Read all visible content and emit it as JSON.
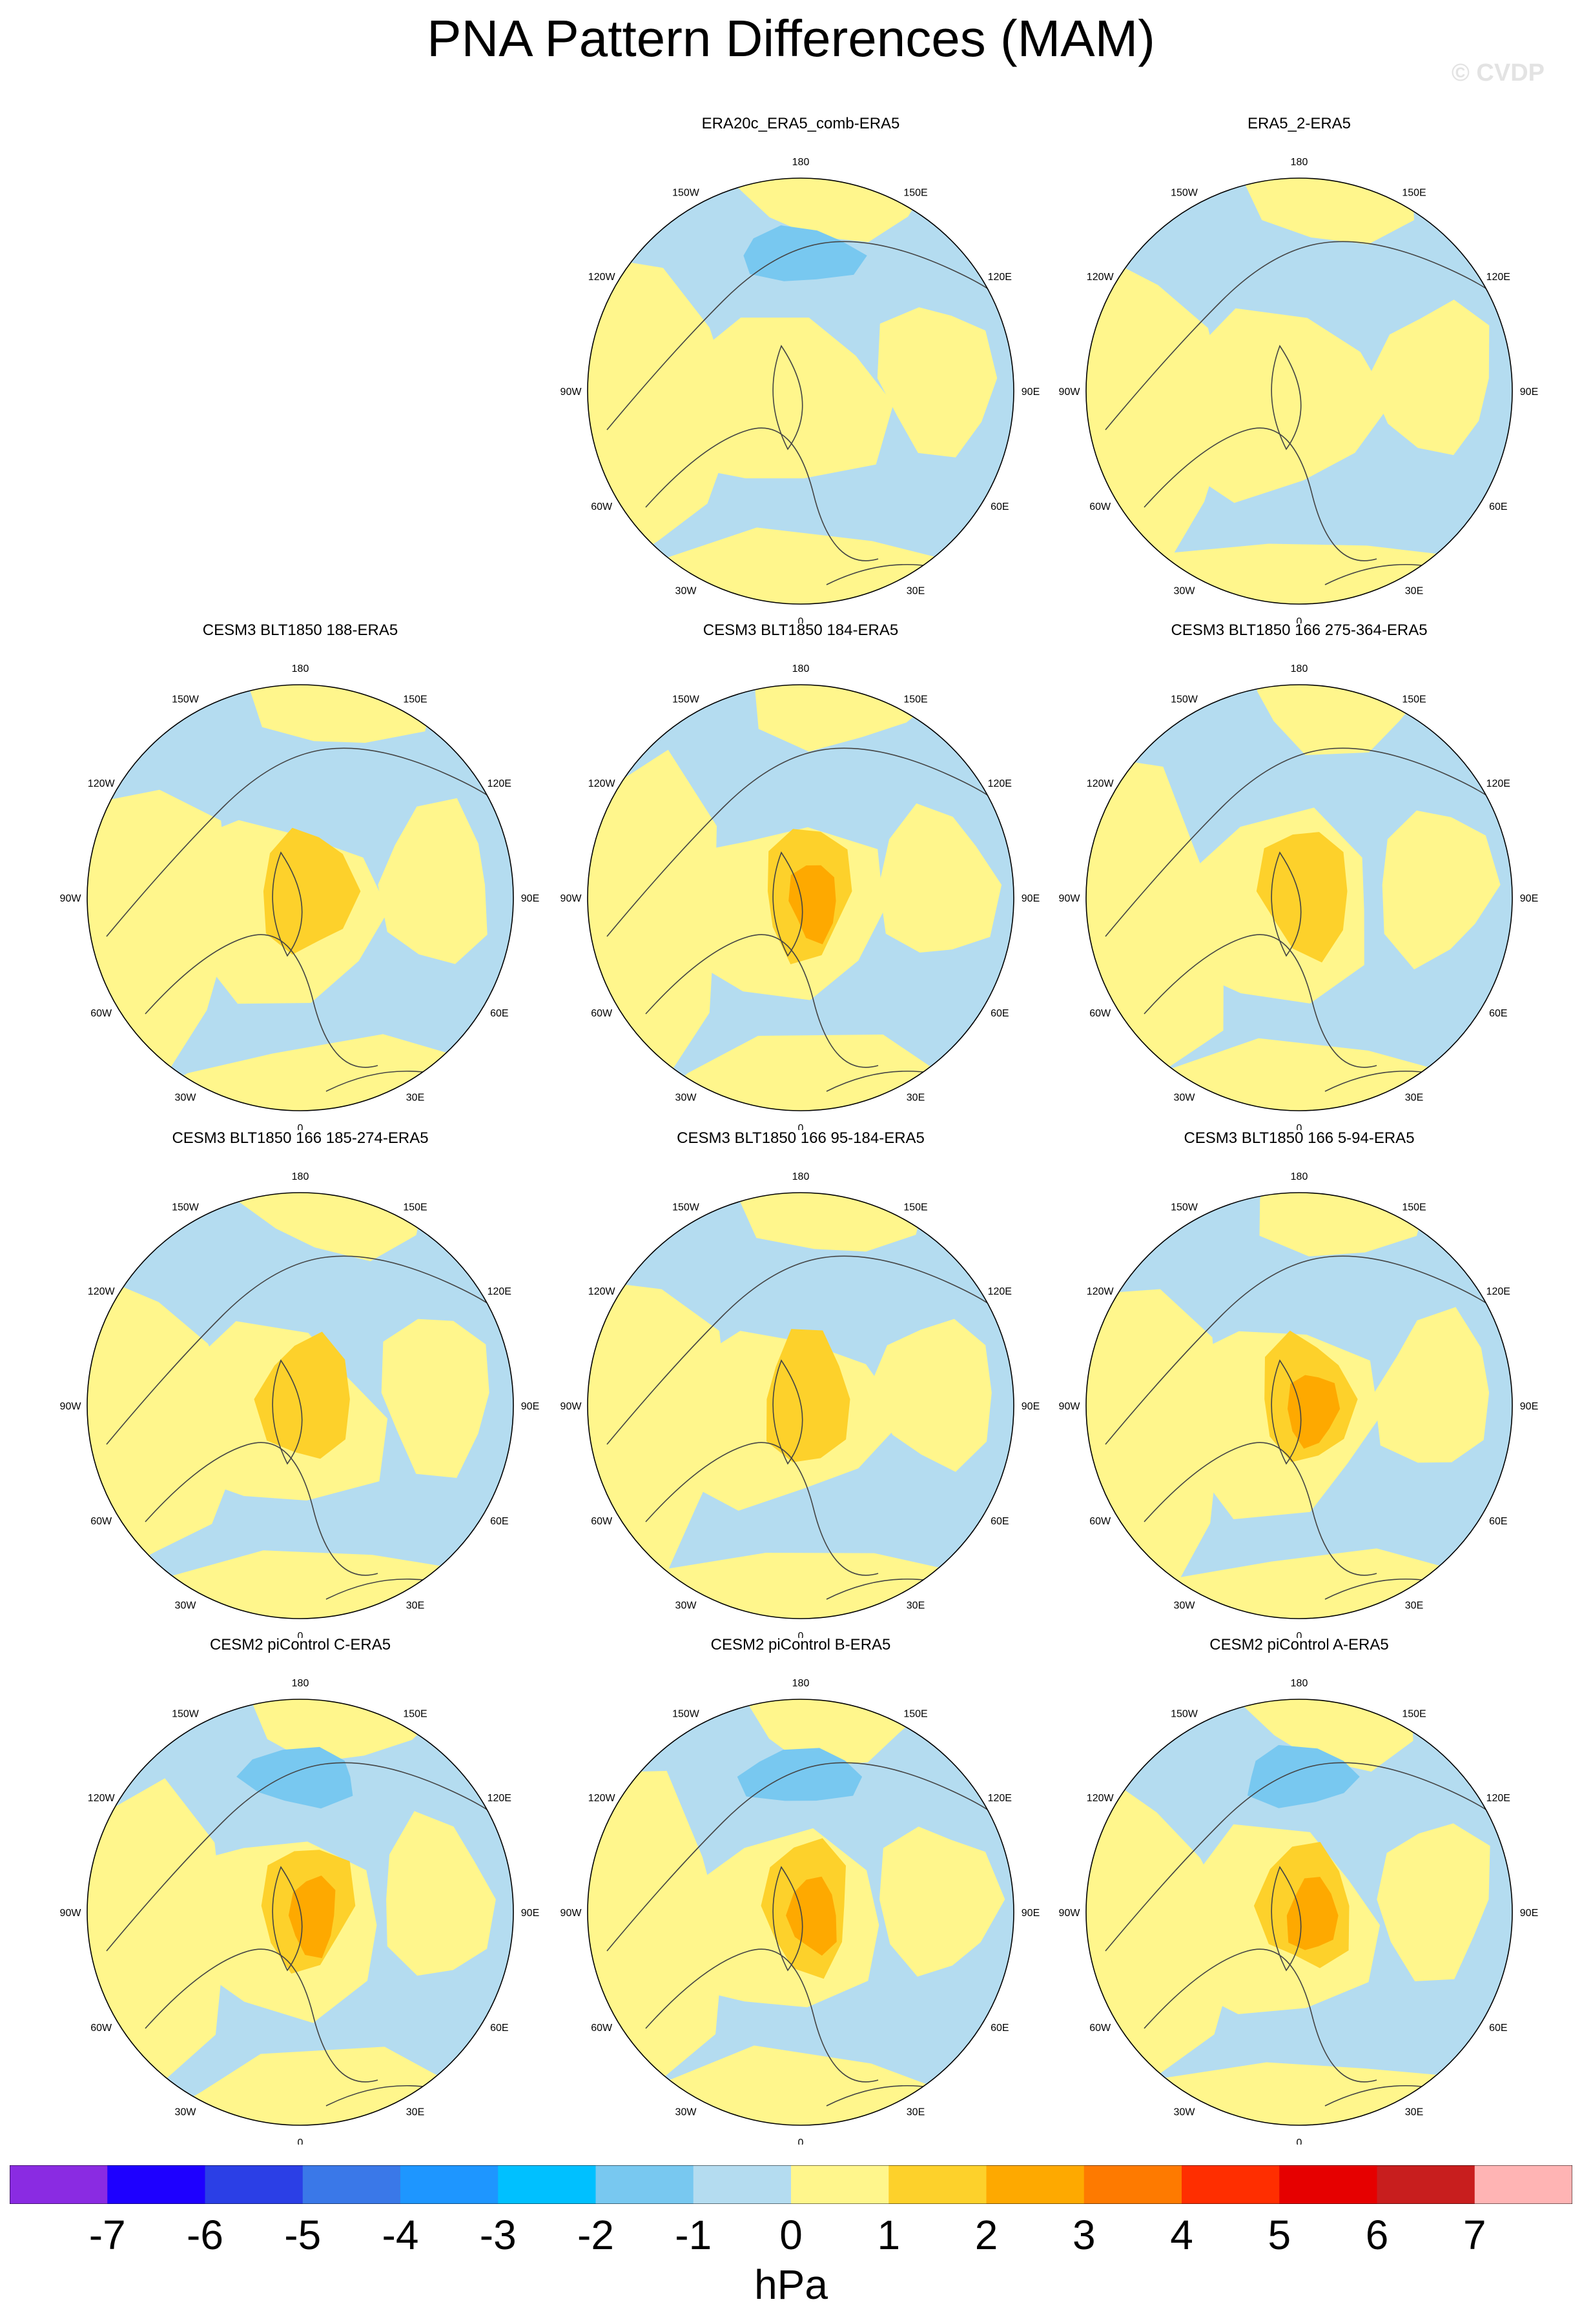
{
  "title": "PNA Pattern Differences (MAM)",
  "watermark": "© CVDP",
  "longitude_labels": [
    "180",
    "150E",
    "120E",
    "90E",
    "60E",
    "30E",
    "0",
    "30W",
    "60W",
    "90W",
    "120W",
    "150W"
  ],
  "panels": [
    {
      "title": "ERA20c_ERA5_comb-ERA5",
      "row": 0,
      "col": 1,
      "max_level": 1,
      "min_level": -2
    },
    {
      "title": "ERA5_2-ERA5",
      "row": 0,
      "col": 2,
      "max_level": 1,
      "min_level": -1
    },
    {
      "title": "CESM3 BLT1850 188-ERA5",
      "row": 1,
      "col": 0,
      "max_level": 2,
      "min_level": -1
    },
    {
      "title": "CESM3 BLT1850 184-ERA5",
      "row": 1,
      "col": 1,
      "max_level": 3,
      "min_level": -1
    },
    {
      "title": "CESM3 BLT1850 166 275-364-ERA5",
      "row": 1,
      "col": 2,
      "max_level": 2,
      "min_level": -1
    },
    {
      "title": "CESM3 BLT1850 166 185-274-ERA5",
      "row": 2,
      "col": 0,
      "max_level": 2,
      "min_level": -1
    },
    {
      "title": "CESM3 BLT1850 166 95-184-ERA5",
      "row": 2,
      "col": 1,
      "max_level": 2,
      "min_level": -1
    },
    {
      "title": "CESM3 BLT1850 166 5-94-ERA5",
      "row": 2,
      "col": 2,
      "max_level": 3,
      "min_level": -1
    },
    {
      "title": "CESM2 piControl C-ERA5",
      "row": 3,
      "col": 0,
      "max_level": 3,
      "min_level": -2
    },
    {
      "title": "CESM2 piControl B-ERA5",
      "row": 3,
      "col": 1,
      "max_level": 3,
      "min_level": -2
    },
    {
      "title": "CESM2 piControl A-ERA5",
      "row": 3,
      "col": 2,
      "max_level": 3,
      "min_level": -2
    }
  ],
  "colorbar": {
    "ticks": [
      "-7",
      "-6",
      "-5",
      "-4",
      "-3",
      "-2",
      "-1",
      "0",
      "1",
      "2",
      "3",
      "4",
      "5",
      "6",
      "7"
    ],
    "colors": [
      "#8a2be2",
      "#1e00ff",
      "#2b3fe6",
      "#3a78e8",
      "#1e96ff",
      "#00c0ff",
      "#78c8f0",
      "#b4dcf0",
      "#fff68c",
      "#fdd12b",
      "#fea900",
      "#fe7a00",
      "#ff2e00",
      "#e60000",
      "#c81e1e",
      "#ffb4b4"
    ],
    "units": "hPa"
  },
  "colors": {
    "neg1": "#b4dcf0",
    "neg2": "#78c8f0",
    "pos1": "#fff68c",
    "pos2": "#fdd12b",
    "pos3": "#fea900",
    "coastline": "#444444"
  }
}
